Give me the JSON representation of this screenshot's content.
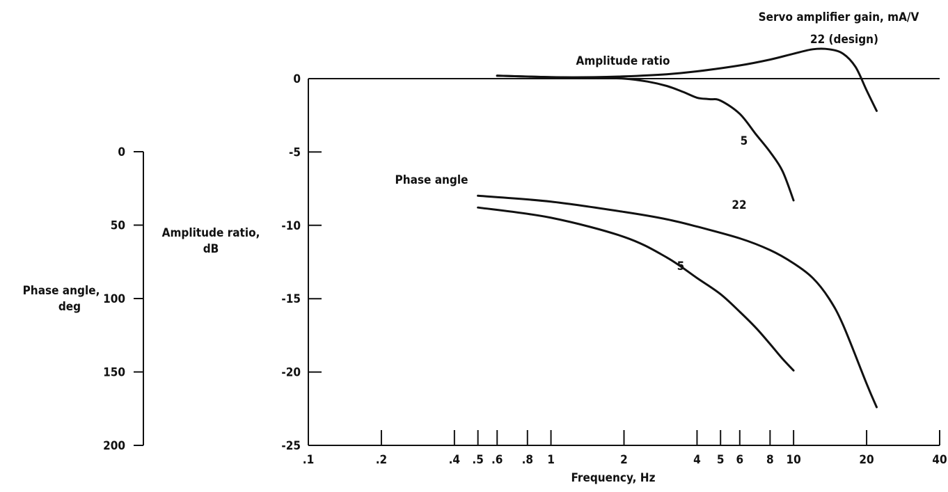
{
  "chart_data": {
    "type": "line",
    "xlabel": "Frequency, Hz",
    "x_scale": "log",
    "xlim": [
      0.1,
      40
    ],
    "x_ticks": [
      {
        "value": 0.1,
        "label": ".1"
      },
      {
        "value": 0.2,
        "label": ".2"
      },
      {
        "value": 0.4,
        "label": ".4"
      },
      {
        "value": 0.5,
        "label": ".5"
      },
      {
        "value": 0.6,
        "label": ".6"
      },
      {
        "value": 0.8,
        "label": ".8"
      },
      {
        "value": 1,
        "label": "1"
      },
      {
        "value": 2,
        "label": "2"
      },
      {
        "value": 4,
        "label": "4"
      },
      {
        "value": 5,
        "label": "5"
      },
      {
        "value": 6,
        "label": "6"
      },
      {
        "value": 8,
        "label": "8"
      },
      {
        "value": 10,
        "label": "10"
      },
      {
        "value": 20,
        "label": "20"
      },
      {
        "value": 40,
        "label": "40"
      }
    ],
    "amplitude_axis": {
      "label_line1": "Amplitude ratio,",
      "label_line2": "dB",
      "range": [
        -25,
        0
      ],
      "ticks": [
        "0",
        "-5",
        "-10",
        "-15",
        "-20",
        "-25"
      ]
    },
    "phase_axis": {
      "label_line1": "Phase angle,",
      "label_line2": "deg",
      "range": [
        0,
        200
      ],
      "ticks": [
        "0",
        "50",
        "100",
        "150",
        "200"
      ]
    },
    "header": "Servo amplifier gain,  mA/V",
    "annotations": {
      "amplitude_title": "Amplitude ratio",
      "phase_title": "Phase angle",
      "amp_22": "22 (design)",
      "amp_5": "5",
      "phase_22": "22",
      "phase_5": "5"
    },
    "series": [
      {
        "group": "amplitude",
        "gain": "22",
        "x": [
          0.6,
          1,
          1.5,
          2,
          3,
          4,
          6,
          8,
          10,
          12,
          14,
          16,
          18,
          20,
          22
        ],
        "y": [
          0.2,
          0.1,
          0.1,
          0.15,
          0.3,
          0.5,
          0.9,
          1.3,
          1.7,
          2.0,
          2.0,
          1.7,
          0.8,
          -0.8,
          -2.2
        ]
      },
      {
        "group": "amplitude",
        "gain": "5",
        "x": [
          0.6,
          1,
          1.5,
          2,
          2.5,
          3,
          3.5,
          4,
          4.5,
          5,
          6,
          7,
          8,
          9,
          10
        ],
        "y": [
          0.2,
          0.1,
          0.05,
          0,
          -0.2,
          -0.5,
          -0.9,
          -1.3,
          -1.4,
          -1.5,
          -2.4,
          -3.8,
          -5.0,
          -6.3,
          -8.3
        ]
      },
      {
        "group": "phase",
        "gain": "22",
        "x": [
          0.5,
          1,
          2,
          3,
          4,
          6,
          8,
          10,
          12,
          14,
          16,
          20,
          22
        ],
        "y": [
          30,
          34,
          41,
          46,
          51,
          59,
          67,
          76,
          86,
          100,
          118,
          158,
          174
        ]
      },
      {
        "group": "phase",
        "gain": "5",
        "x": [
          0.5,
          1,
          2,
          3,
          4,
          5,
          6,
          7,
          8,
          9,
          10
        ],
        "y": [
          38,
          45,
          58,
          72,
          86,
          97,
          109,
          120,
          131,
          141,
          149
        ]
      }
    ]
  }
}
